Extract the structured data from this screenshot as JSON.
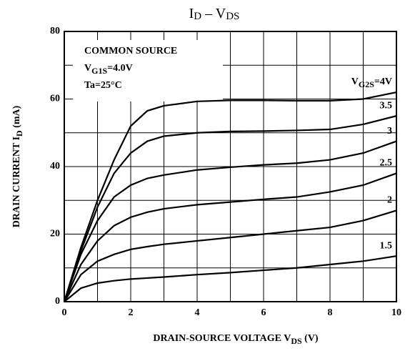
{
  "chart_data": {
    "type": "line",
    "title": [
      "I",
      "D",
      " – V",
      "DS"
    ],
    "y_label": [
      "DRAIN CURRENT  I",
      "D",
      "  (mA)"
    ],
    "x_label": [
      "DRAIN-SOURCE VOLTAGE   V",
      "DS",
      "  (V)"
    ],
    "annotations": [
      "COMMON SOURCE",
      [
        "V",
        "G1S",
        "=4.0V"
      ],
      "Ta=25°C"
    ],
    "x": [
      0,
      0.5,
      1,
      1.5,
      2,
      2.5,
      3,
      4,
      5,
      6,
      7,
      8,
      9,
      10
    ],
    "series": [
      {
        "name": [
          "V",
          "G2S",
          "=4V"
        ],
        "color": "#000000",
        "values": [
          0,
          16,
          30,
          42,
          52,
          56.5,
          58,
          59.3,
          59.6,
          59.6,
          59.5,
          59.5,
          60,
          62
        ]
      },
      {
        "name": "3.5",
        "color": "#000000",
        "values": [
          0,
          15,
          28,
          38,
          44,
          47.5,
          49,
          50,
          50.4,
          50.5,
          50.7,
          51,
          52.5,
          55
        ]
      },
      {
        "name": "3",
        "color": "#000000",
        "values": [
          0,
          14,
          24,
          31,
          34.5,
          36.5,
          37.5,
          39,
          39.8,
          40.5,
          41,
          42,
          44,
          47.5
        ]
      },
      {
        "name": "2.5",
        "color": "#000000",
        "values": [
          0,
          11,
          18,
          22.5,
          25,
          26.5,
          27.5,
          28.7,
          29.5,
          30.3,
          31,
          32.5,
          34.5,
          38
        ]
      },
      {
        "name": "2",
        "color": "#000000",
        "values": [
          0,
          8,
          12,
          14,
          15.5,
          16.3,
          17,
          18,
          19,
          20,
          21,
          22,
          24,
          27
        ]
      },
      {
        "name": "1.5",
        "color": "#000000",
        "values": [
          0,
          4,
          5.5,
          6.2,
          6.7,
          7,
          7.3,
          8,
          8.6,
          9.3,
          10,
          11,
          12,
          13.5
        ]
      }
    ],
    "xlim": [
      0,
      10
    ],
    "xticks": [
      0,
      2,
      4,
      6,
      8,
      10
    ],
    "xminor": [
      1,
      3,
      5,
      7,
      9
    ],
    "ylim": [
      0,
      80
    ],
    "yticks": [
      0,
      20,
      40,
      60,
      80
    ],
    "yminor": [
      10,
      30,
      50,
      70
    ],
    "grid": true
  }
}
